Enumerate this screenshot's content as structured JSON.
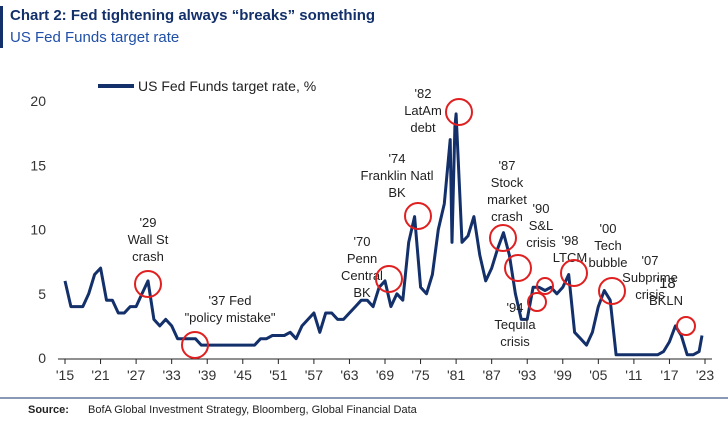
{
  "chart_data": {
    "type": "line",
    "title": "Chart 2: Fed tightening always “breaks” something",
    "subtitle": "US Fed Funds target rate",
    "source_label": "Source:",
    "source": "BofA Global Investment Strategy, Bloomberg, Global Financial Data",
    "x": [
      1915,
      1916,
      1917,
      1918,
      1919,
      1920,
      1921,
      1922,
      1923,
      1924,
      1925,
      1926,
      1927,
      1928,
      1929,
      1930,
      1931,
      1932,
      1933,
      1934,
      1935,
      1936,
      1937,
      1938,
      1939,
      1940,
      1941,
      1942,
      1943,
      1944,
      1945,
      1946,
      1947,
      1948,
      1949,
      1950,
      1951,
      1952,
      1953,
      1954,
      1955,
      1956,
      1957,
      1958,
      1959,
      1960,
      1961,
      1962,
      1963,
      1964,
      1965,
      1966,
      1967,
      1968,
      1969,
      1970,
      1971,
      1972,
      1973,
      1974,
      1975,
      1976,
      1977,
      1978,
      1979,
      1980,
      1980.3,
      1980.8,
      1981,
      1982,
      1983,
      1984,
      1985,
      1986,
      1987,
      1988,
      1989,
      1990,
      1991,
      1992,
      1993,
      1994,
      1995,
      1996,
      1997,
      1998,
      1999,
      2000,
      2001,
      2002,
      2003,
      2004,
      2005,
      2006,
      2007,
      2008,
      2009,
      2010,
      2011,
      2012,
      2013,
      2014,
      2015,
      2016,
      2017,
      2018,
      2019,
      2020,
      2021,
      2022,
      2022.5
    ],
    "series": [
      {
        "name": "US Fed Funds target rate, %",
        "color": "#13306b",
        "values": [
          6,
          4,
          4,
          4,
          5,
          6.5,
          7,
          4.5,
          4.5,
          3.5,
          3.5,
          4,
          4,
          5,
          6,
          3,
          2.5,
          3,
          2.5,
          1.5,
          1.5,
          1.5,
          1.5,
          1,
          1,
          1,
          1,
          1,
          1,
          1,
          1,
          1,
          1,
          1.5,
          1.5,
          1.75,
          1.75,
          1.75,
          2,
          1.5,
          2.5,
          3,
          3.5,
          2,
          3.5,
          3.5,
          3,
          3,
          3.5,
          4,
          4.5,
          4.5,
          4,
          5.5,
          6,
          4,
          5,
          4.5,
          9,
          11,
          5.5,
          5,
          6.5,
          10,
          12,
          17,
          9,
          18,
          19,
          9,
          9.5,
          11,
          8,
          6,
          7,
          8.5,
          9.75,
          8,
          5,
          3,
          3,
          5.5,
          5.5,
          5.25,
          5.5,
          5,
          5.5,
          6.5,
          2,
          1.5,
          1,
          2,
          4,
          5.25,
          4.5,
          0.25,
          0.25,
          0.25,
          0.25,
          0.25,
          0.25,
          0.25,
          0.25,
          0.5,
          1.25,
          2.5,
          1.75,
          0.25,
          0.25,
          0.5,
          1.75
        ]
      }
    ],
    "xlim": [
      1915,
      2023
    ],
    "xticks": [
      {
        "value": 1915,
        "label": "'15"
      },
      {
        "value": 1921,
        "label": "'21"
      },
      {
        "value": 1927,
        "label": "'27"
      },
      {
        "value": 1933,
        "label": "'33"
      },
      {
        "value": 1939,
        "label": "'39"
      },
      {
        "value": 1945,
        "label": "'45"
      },
      {
        "value": 1951,
        "label": "'51"
      },
      {
        "value": 1957,
        "label": "'57"
      },
      {
        "value": 1963,
        "label": "'63"
      },
      {
        "value": 1969,
        "label": "'69"
      },
      {
        "value": 1975,
        "label": "'75"
      },
      {
        "value": 1981,
        "label": "'81"
      },
      {
        "value": 1987,
        "label": "'87"
      },
      {
        "value": 1993,
        "label": "'93"
      },
      {
        "value": 1999,
        "label": "'99"
      },
      {
        "value": 2005,
        "label": "'05"
      },
      {
        "value": 2011,
        "label": "'11"
      },
      {
        "value": 2017,
        "label": "'17"
      },
      {
        "value": 2023,
        "label": "'23"
      }
    ],
    "ylim": [
      0,
      20
    ],
    "yticks": [
      0,
      5,
      10,
      15,
      20
    ],
    "annotations": [
      {
        "lines": [
          "'29",
          "Wall St",
          "crash"
        ]
      },
      {
        "lines": [
          "'37 Fed",
          "\"policy mistake\""
        ]
      },
      {
        "lines": [
          "'70",
          "Penn",
          "Central",
          "BK"
        ]
      },
      {
        "lines": [
          "'74",
          "Franklin Natl",
          "BK"
        ]
      },
      {
        "lines": [
          "'82",
          "LatAm",
          "debt"
        ]
      },
      {
        "lines": [
          "'87",
          "Stock",
          "market",
          "crash"
        ]
      },
      {
        "lines": [
          "'90",
          "S&L",
          "crisis"
        ]
      },
      {
        "lines": [
          "'98",
          "LTCM"
        ]
      },
      {
        "lines": [
          "'94",
          "Tequila",
          "crisis"
        ]
      },
      {
        "lines": [
          "'00",
          "Tech",
          "bubble"
        ]
      },
      {
        "lines": [
          "'07",
          "Subprime",
          "crisis"
        ]
      },
      {
        "lines": [
          "'18",
          "BKLN"
        ]
      }
    ]
  }
}
